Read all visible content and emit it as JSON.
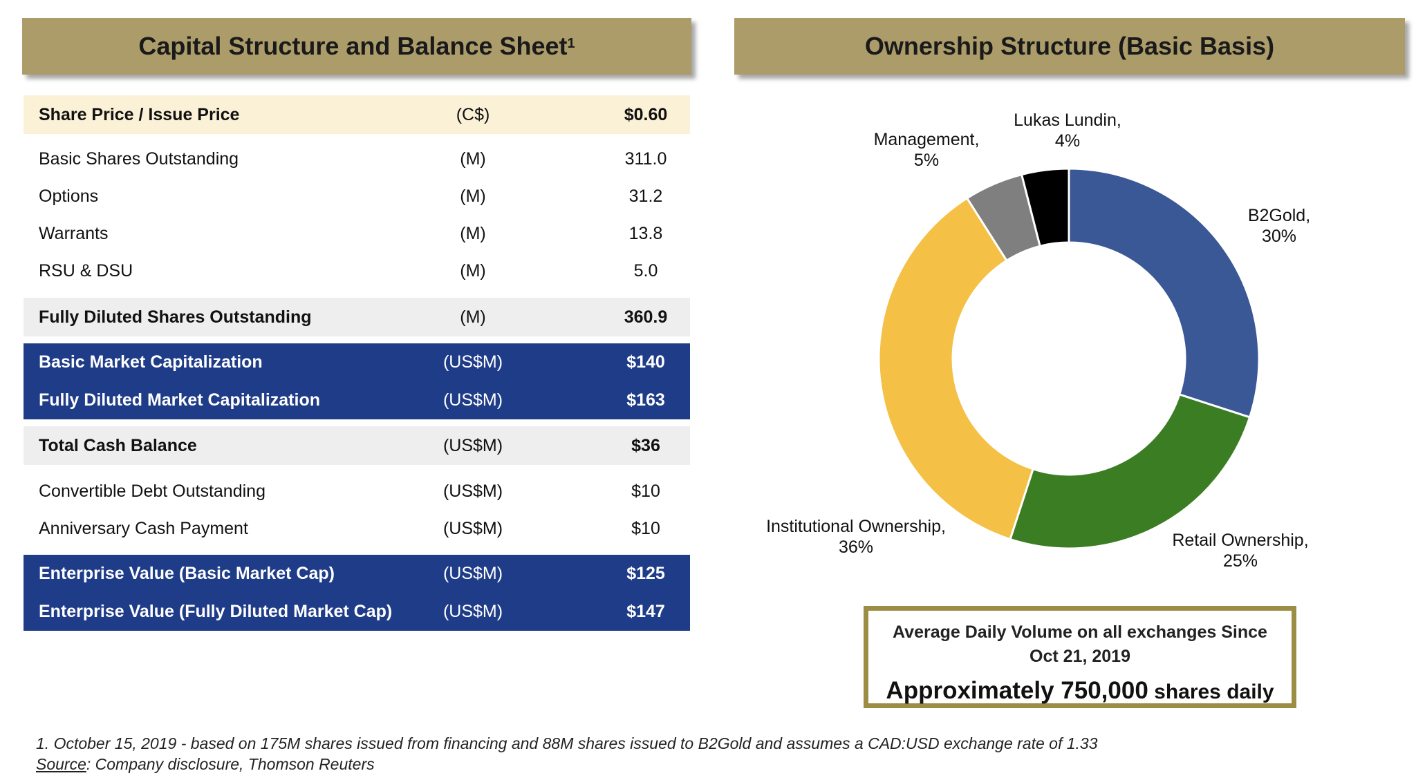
{
  "left_panel": {
    "title": "Capital Structure and Balance Sheet",
    "title_sup": "1",
    "rows": [
      {
        "label": "Share Price / Issue Price",
        "unit": "(C$)",
        "value": "$0.60"
      },
      {
        "label": "Basic Shares Outstanding",
        "unit": "(M)",
        "value": "311.0"
      },
      {
        "label": "Options",
        "unit": "(M)",
        "value": "31.2"
      },
      {
        "label": "Warrants",
        "unit": "(M)",
        "value": "13.8"
      },
      {
        "label": "RSU & DSU",
        "unit": "(M)",
        "value": "5.0"
      },
      {
        "label": "Fully Diluted Shares Outstanding",
        "unit": "(M)",
        "value": "360.9"
      },
      {
        "label": "Basic Market Capitalization",
        "unit": "(US$M)",
        "value": "$140"
      },
      {
        "label": "Fully Diluted Market Capitalization",
        "unit": "(US$M)",
        "value": "$163"
      },
      {
        "label": "Total Cash Balance",
        "unit": "(US$M)",
        "value": "$36"
      },
      {
        "label": "Convertible Debt Outstanding",
        "unit": "(US$M)",
        "value": "$10"
      },
      {
        "label": "Anniversary Cash Payment",
        "unit": "(US$M)",
        "value": "$10"
      },
      {
        "label": "Enterprise Value (Basic Market Cap)",
        "unit": "(US$M)",
        "value": "$125"
      },
      {
        "label": "Enterprise Value (Fully Diluted Market Cap)",
        "unit": "(US$M)",
        "value": "$147"
      }
    ]
  },
  "right_panel": {
    "title": "Ownership Structure (Basic Basis)"
  },
  "chart_data": {
    "type": "pie",
    "donut": true,
    "title": "Ownership Structure (Basic Basis)",
    "slices": [
      {
        "label": "B2Gold,",
        "pct_label": "30%",
        "value": 30,
        "color": "#3a5895"
      },
      {
        "label": "Retail Ownership,",
        "pct_label": "25%",
        "value": 25,
        "color": "#3b7d23"
      },
      {
        "label": "Institutional Ownership,",
        "pct_label": "36%",
        "value": 36,
        "color": "#f4c045"
      },
      {
        "label": "Management,",
        "pct_label": "5%",
        "value": 5,
        "color": "#7f7f7f"
      },
      {
        "label": "Lukas Lundin,",
        "pct_label": "4%",
        "value": 4,
        "color": "#000000"
      }
    ]
  },
  "volume_box": {
    "line1": "Average Daily Volume on all exchanges Since",
    "line2": "Oct 21, 2019",
    "line3_main": "Approximately 750,000",
    "line3_small": " shares daily"
  },
  "footnote": "1. October 15, 2019 - based on 175M shares issued from financing and 88M shares issued to B2Gold and assumes a CAD:USD exchange rate of 1.33",
  "source": {
    "label": "Source",
    "text": ": Company disclosure, Thomson Reuters"
  },
  "colors": {
    "banner": "#ab9c6a",
    "navy": "#1f3c88",
    "beige_row": "#fbf1d6",
    "grey_row": "#eeeeee",
    "box_border": "#9c8d45"
  }
}
